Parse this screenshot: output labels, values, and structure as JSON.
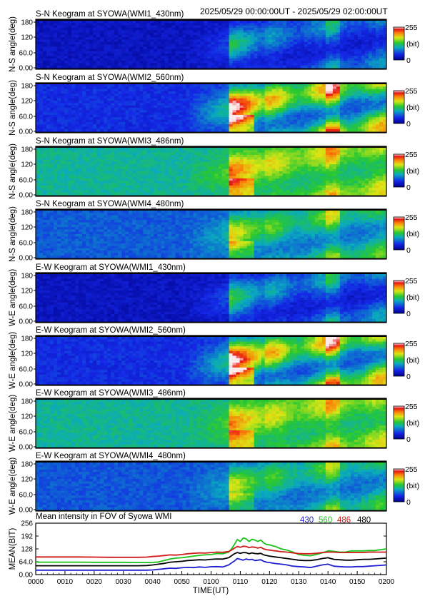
{
  "header": {
    "time_range": "2025/05/29 00:00:00UT - 2025/05/29 02:00:00UT"
  },
  "colors": {
    "frame": "#000000",
    "c430": "#1f1fd0",
    "c560": "#19c219",
    "c486": "#d01a1a",
    "c480": "#000000"
  },
  "colorbar": {
    "max_label": "255",
    "min_label": "0",
    "unit_label": "(bit)"
  },
  "keograms": [
    {
      "title": "S-N Keogram at SYOWA(WMI1_430nm)",
      "ylabel": "N-S angle(deg)",
      "yticks": [
        "180",
        "120",
        "60.0",
        "0.00"
      ],
      "base": 0.1,
      "gain": 0.45,
      "bright": [
        0.05,
        0.3
      ]
    },
    {
      "title": "S-N Keogram at SYOWA(WMI2_560nm)",
      "ylabel": "N-S angle(deg)",
      "yticks": [
        "180",
        "120",
        "60.0",
        "0.00"
      ],
      "base": 0.18,
      "gain": 1.05,
      "bright": [
        0.45,
        0.95
      ]
    },
    {
      "title": "S-N Keogram at SYOWA(WMI3_486nm)",
      "ylabel": "N-S angle(deg)",
      "yticks": [
        "180",
        "120",
        "60.0",
        "0.00"
      ],
      "base": 0.42,
      "gain": 0.5,
      "bright": [
        0.3,
        0.75
      ]
    },
    {
      "title": "S-N Keogram at SYOWA(WMI4_480nm)",
      "ylabel": "N-S angle(deg)",
      "yticks": [
        "180",
        "120",
        "60.0",
        "0.00"
      ],
      "base": 0.26,
      "gain": 0.55,
      "bright": [
        0.2,
        0.6
      ]
    },
    {
      "title": "E-W Keogram at SYOWA(WMI1_430nm)",
      "ylabel": "W-E angle(deg)",
      "yticks": [
        "180",
        "120",
        "60.0",
        "0.00"
      ],
      "base": 0.1,
      "gain": 0.5,
      "bright": [
        0.05,
        0.35
      ]
    },
    {
      "title": "E-W Keogram at SYOWA(WMI2_560nm)",
      "ylabel": "W-E angle(deg)",
      "yticks": [
        "180",
        "120",
        "60.0",
        "0.00"
      ],
      "base": 0.18,
      "gain": 1.05,
      "bright": [
        0.45,
        0.95
      ]
    },
    {
      "title": "E-W Keogram at SYOWA(WMI3_486nm)",
      "ylabel": "W-E angle(deg)",
      "yticks": [
        "180",
        "120",
        "60.0",
        "0.00"
      ],
      "base": 0.42,
      "gain": 0.48,
      "bright": [
        0.3,
        0.7
      ]
    },
    {
      "title": "E-W Keogram at SYOWA(WMI4_480nm)",
      "ylabel": "W-E angle(deg)",
      "yticks": [
        "180",
        "120",
        "60.0",
        "0.00"
      ],
      "base": 0.25,
      "gain": 0.52,
      "bright": [
        0.2,
        0.55
      ]
    }
  ],
  "chart_data": {
    "type": "line",
    "title": "Mean intensity in FOV of Syowa WMI",
    "xlabel": "TIME(UT)",
    "ylabel": "MEAN(BIT)",
    "xlim": [
      0,
      120
    ],
    "ylim": [
      0,
      256
    ],
    "xtick_labels": [
      "0000",
      "0010",
      "0020",
      "0030",
      "0040",
      "0050",
      "0100",
      "0110",
      "0120",
      "0130",
      "0140",
      "0150",
      "0200"
    ],
    "ytick_labels": [
      "256",
      "192",
      "128",
      "64.0",
      "0.00"
    ],
    "legend": [
      "430",
      "560",
      "486",
      "480"
    ],
    "x": [
      0,
      5,
      10,
      15,
      20,
      25,
      30,
      35,
      38,
      40,
      42,
      44,
      46,
      48,
      50,
      52,
      54,
      56,
      58,
      60,
      62,
      64,
      66,
      67,
      68,
      69,
      70,
      71,
      72,
      73,
      74,
      75,
      76,
      77,
      78,
      79,
      80,
      82,
      84,
      86,
      88,
      90,
      92,
      94,
      96,
      98,
      100,
      102,
      104,
      106,
      108,
      110,
      112,
      114,
      116,
      118,
      120
    ],
    "series": [
      {
        "name": "430",
        "color_key": "c430",
        "values": [
          22,
          22,
          22,
          22,
          22,
          22,
          22,
          22,
          22,
          23,
          26,
          29,
          32,
          31,
          34,
          36,
          35,
          38,
          36,
          39,
          40,
          38,
          48,
          58,
          68,
          80,
          76,
          72,
          78,
          74,
          76,
          70,
          72,
          74,
          66,
          62,
          60,
          55,
          52,
          48,
          42,
          40,
          38,
          35,
          42,
          48,
          52,
          42,
          40,
          38,
          38,
          40,
          40,
          42,
          44,
          46,
          48
        ]
      },
      {
        "name": "560",
        "color_key": "c560",
        "values": [
          62,
          62,
          62,
          62,
          61,
          61,
          61,
          60,
          60,
          60,
          63,
          70,
          78,
          82,
          84,
          88,
          92,
          96,
          98,
          100,
          105,
          104,
          112,
          128,
          150,
          175,
          165,
          182,
          178,
          165,
          176,
          172,
          165,
          172,
          158,
          150,
          148,
          140,
          128,
          122,
          112,
          100,
          96,
          94,
          100,
          108,
          118,
          116,
          112,
          112,
          118,
          118,
          118,
          120,
          120,
          124,
          128
        ]
      },
      {
        "name": "486",
        "color_key": "c486",
        "values": [
          88,
          88,
          88,
          88,
          87,
          86,
          86,
          86,
          87,
          90,
          92,
          95,
          98,
          97,
          100,
          104,
          106,
          108,
          107,
          110,
          112,
          111,
          115,
          122,
          132,
          140,
          136,
          141,
          140,
          134,
          138,
          136,
          132,
          136,
          128,
          124,
          122,
          118,
          114,
          112,
          108,
          105,
          104,
          104,
          106,
          110,
          112,
          112,
          110,
          110,
          110,
          110,
          110,
          112,
          112,
          112,
          112
        ]
      },
      {
        "name": "480",
        "color_key": "c480",
        "values": [
          44,
          44,
          44,
          44,
          44,
          44,
          44,
          44,
          45,
          48,
          52,
          56,
          62,
          64,
          66,
          70,
          72,
          74,
          73,
          76,
          78,
          77,
          84,
          94,
          104,
          110,
          106,
          110,
          109,
          104,
          108,
          105,
          104,
          106,
          98,
          95,
          92,
          88,
          84,
          80,
          76,
          72,
          70,
          70,
          74,
          80,
          84,
          76,
          74,
          72,
          72,
          74,
          76,
          76,
          78,
          80,
          82
        ]
      }
    ]
  }
}
